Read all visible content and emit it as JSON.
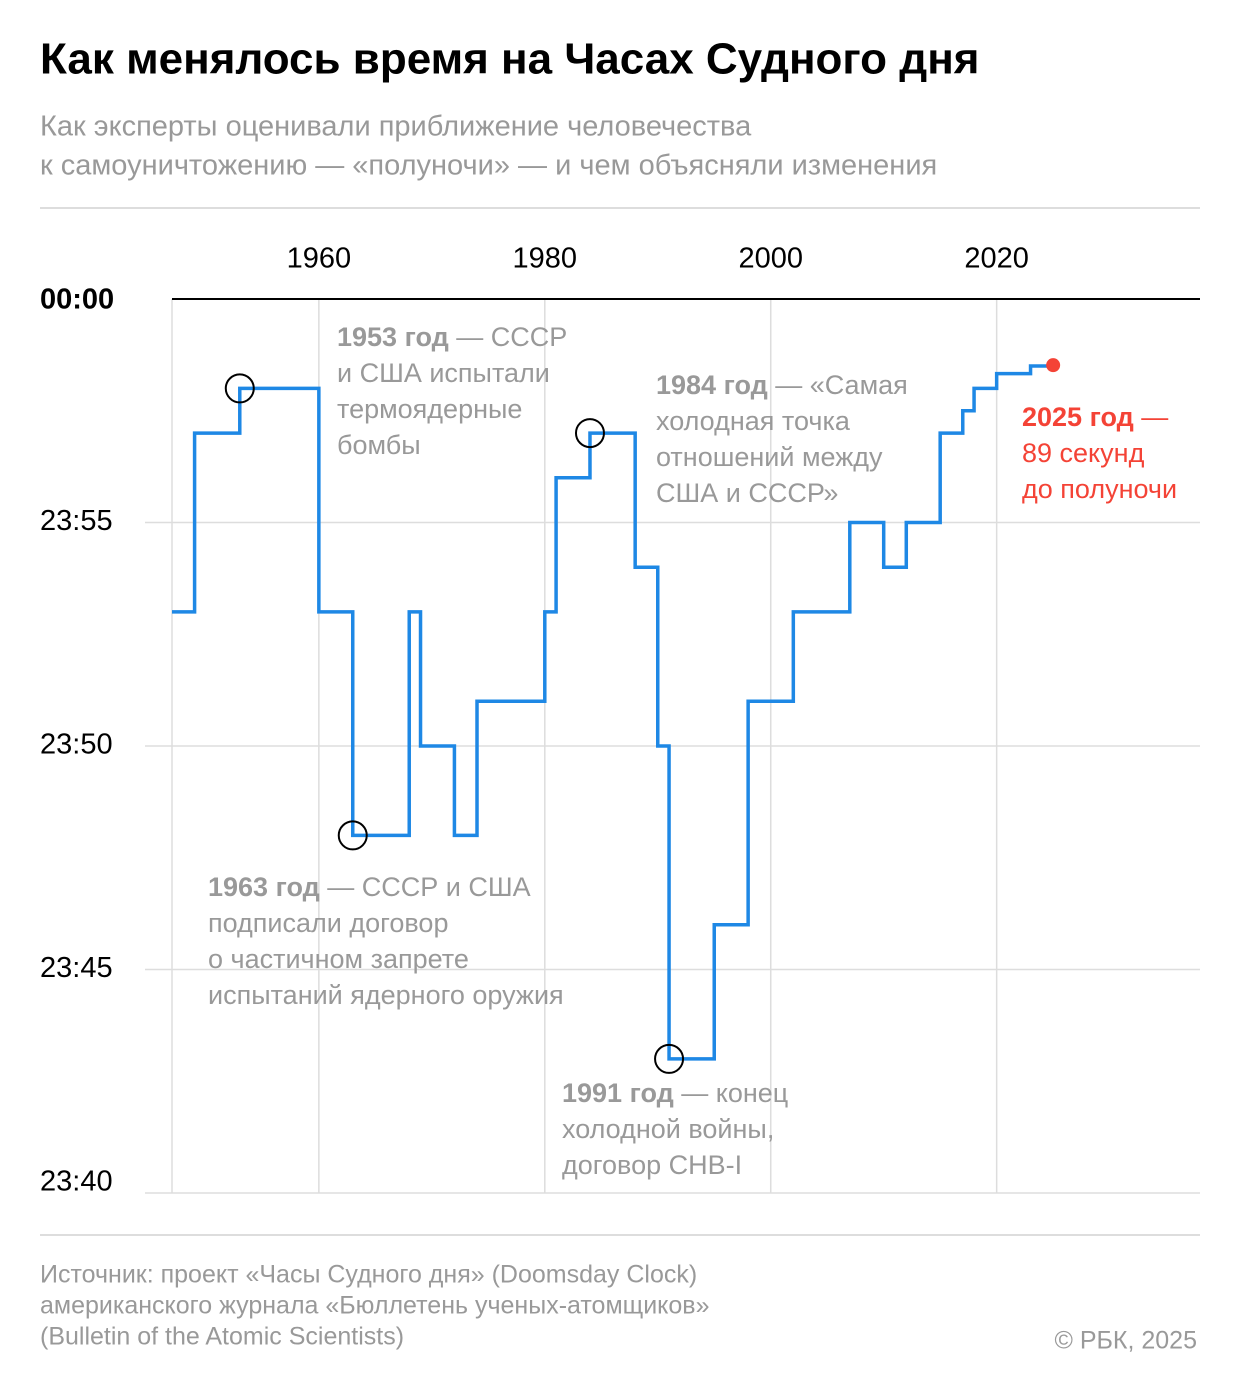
{
  "chart_data": {
    "type": "step",
    "title": "Как менялось время на Часах Судного дня",
    "subtitle": [
      "Как эксперты оценивали приближение человечества",
      "к самоуничтожению — «полуночи» — и чем объясняли изменения"
    ],
    "x": [
      1947,
      1949,
      1953,
      1960,
      1963,
      1968,
      1969,
      1972,
      1974,
      1980,
      1981,
      1984,
      1988,
      1990,
      1991,
      1995,
      1998,
      2002,
      2007,
      2010,
      2012,
      2015,
      2017,
      2018,
      2020,
      2023,
      2025
    ],
    "series": [
      {
        "color": "#1e88e5",
        "values": [
          -7,
          -3,
          -2,
          -7,
          -12,
          -7,
          -10,
          -12,
          -9,
          -7,
          -4,
          -3,
          -6,
          -10,
          -17,
          -14,
          -9,
          -7,
          -5,
          -6,
          -5,
          -3,
          -2.5,
          -2,
          -1.67,
          -1.5,
          -1.48
        ]
      }
    ],
    "xlim": [
      1947,
      2038
    ],
    "xticks": [
      1960,
      1980,
      2000,
      2020
    ],
    "ylim": [
      -20,
      0
    ],
    "yticks": [
      {
        "value": 0,
        "label": "00:00"
      },
      {
        "value": -5,
        "label": "23:55"
      },
      {
        "value": -10,
        "label": "23:50"
      },
      {
        "value": -15,
        "label": "23:45"
      },
      {
        "value": -20,
        "label": "23:40"
      }
    ],
    "grid": true,
    "annotations": [
      {
        "point": 2,
        "lead": "1953 год",
        "lines": [
          " — СССР",
          "и США испытали",
          "термоядерные",
          "бомбы"
        ]
      },
      {
        "point": 4,
        "lead": "1963 год",
        "lines": [
          " — СССР и США",
          "подписали договор",
          "о частичном запрете",
          "испытаний ядерного оружия"
        ]
      },
      {
        "point": 11,
        "lead": "1984 год",
        "lines": [
          " — «Самая",
          "холодная точка",
          "отношений между",
          "США и СССР»"
        ]
      },
      {
        "point": 14,
        "lead": "1991 год",
        "lines": [
          " — конец",
          "холодной войны,",
          "договор СНВ-I"
        ]
      },
      {
        "point": 26,
        "lead": "2025 год",
        "lines": [
          " —",
          "89 секунд",
          "до полуночи"
        ],
        "color": "#f44336"
      }
    ],
    "source": [
      "Источник: проект «Часы Судного дня» (Doomsday Clock)",
      "американского журнала «Бюллетень ученых-атомщиков»",
      "(Bulletin of the Atomic Scientists)"
    ],
    "copyright": "© РБК, 2025"
  }
}
